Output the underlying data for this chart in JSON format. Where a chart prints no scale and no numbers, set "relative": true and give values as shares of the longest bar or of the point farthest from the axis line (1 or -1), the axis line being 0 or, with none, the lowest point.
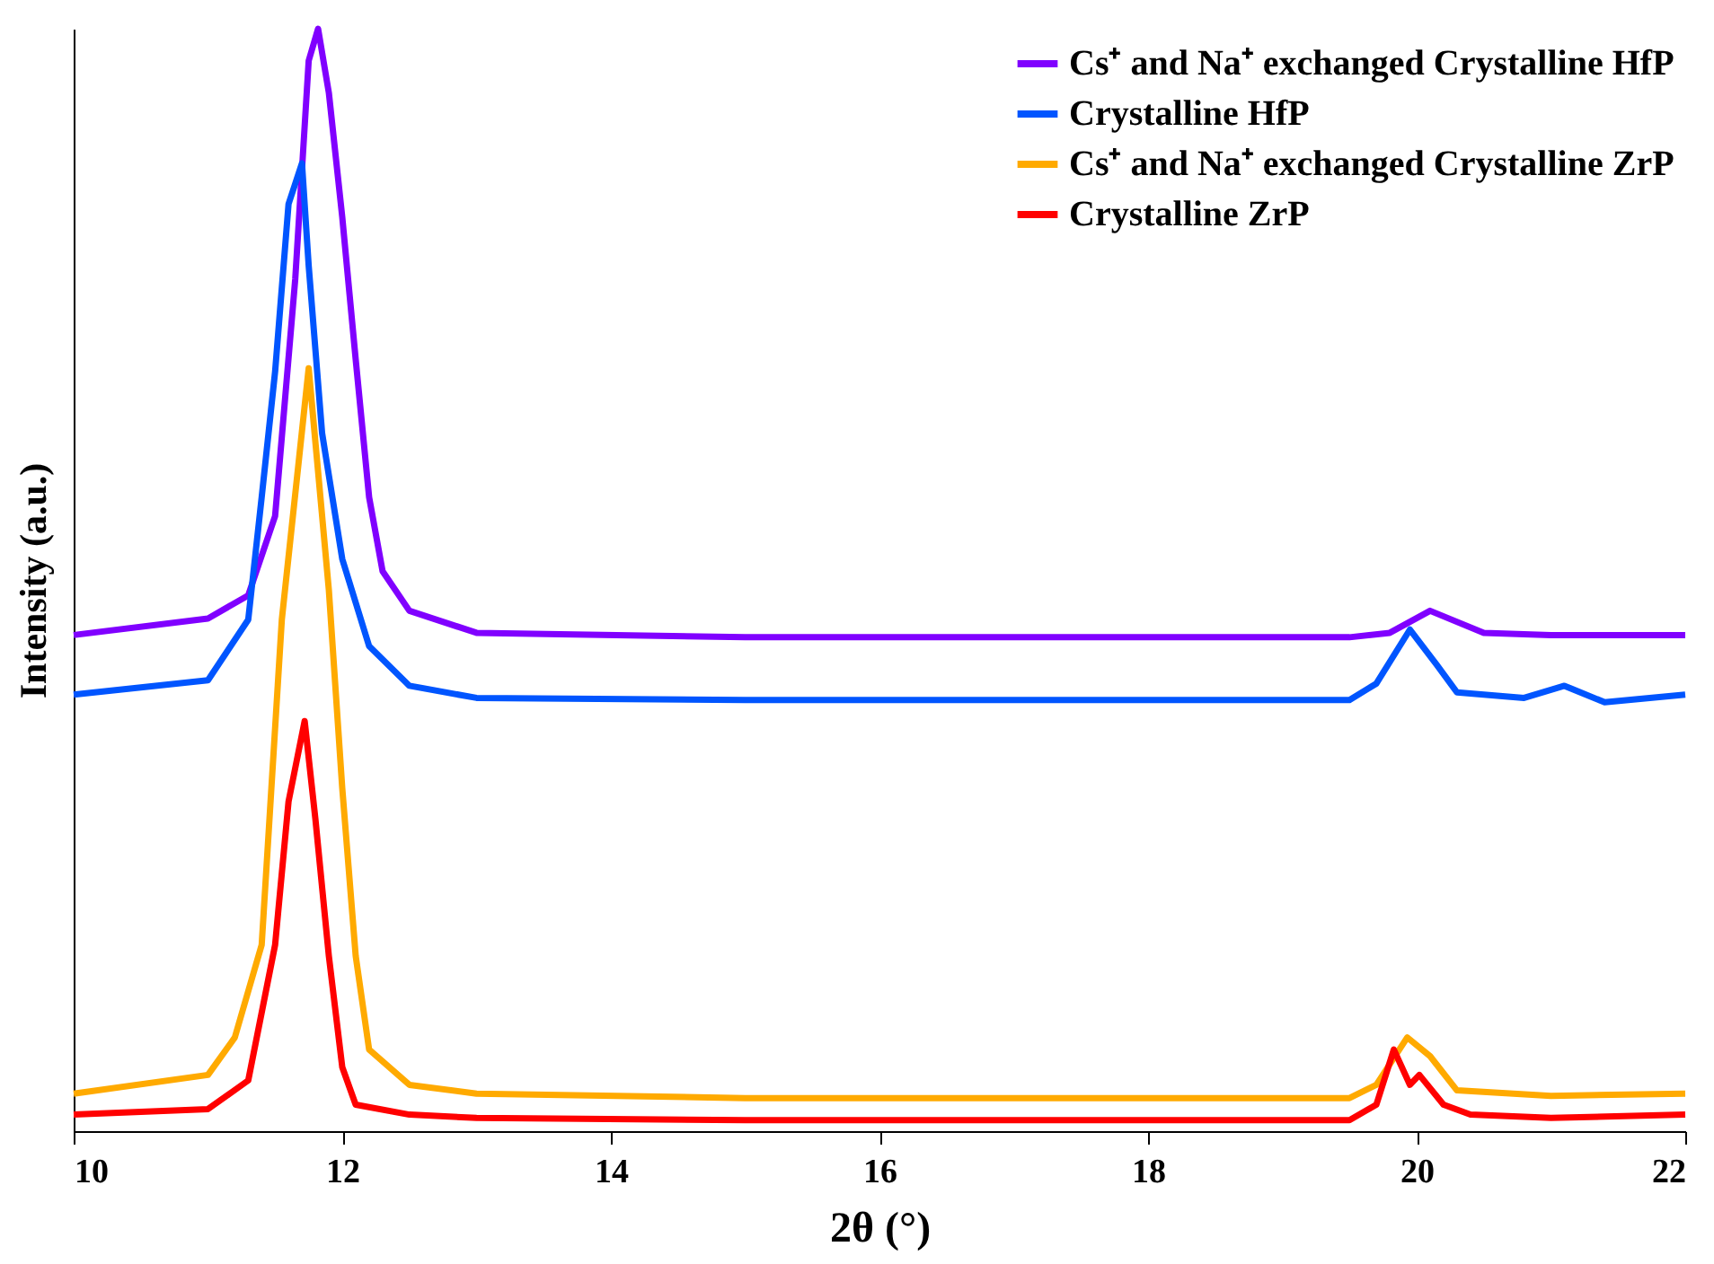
{
  "chart_data": {
    "type": "line",
    "xlabel": "2θ (°)",
    "ylabel": "Intensity (a.u.)",
    "relative": true,
    "xlim": [
      10,
      22
    ],
    "xticks": [
      10,
      12,
      14,
      16,
      18,
      20,
      22
    ],
    "legend": "top right",
    "grid": false,
    "marker": "none",
    "line_style": "solid",
    "series": [
      {
        "name": "Cs⁺ and Na⁺ exchanged Crystalline HfP",
        "color": "#8000ff",
        "x": [
          10,
          11,
          11.3,
          11.5,
          11.65,
          11.75,
          11.82,
          11.9,
          12,
          12.1,
          12.2,
          12.3,
          12.5,
          13,
          15,
          17,
          19.5,
          19.8,
          20.1,
          20.5,
          21,
          22
        ],
        "values": [
          0.45,
          0.465,
          0.486,
          0.558,
          0.773,
          0.971,
          1,
          0.942,
          0.829,
          0.7,
          0.575,
          0.508,
          0.472,
          0.452,
          0.448,
          0.448,
          0.448,
          0.452,
          0.472,
          0.452,
          0.45,
          0.45
        ]
      },
      {
        "name": "Crystalline HfP",
        "color": "#0055ff",
        "x": [
          10,
          11,
          11.3,
          11.4,
          11.5,
          11.6,
          11.7,
          11.75,
          11.85,
          12,
          12.2,
          12.5,
          13,
          15,
          17,
          19.5,
          19.7,
          19.95,
          20.15,
          20.3,
          20.8,
          21.1,
          21.4,
          22
        ],
        "values": [
          0.396,
          0.409,
          0.464,
          0.575,
          0.689,
          0.841,
          0.878,
          0.785,
          0.633,
          0.519,
          0.44,
          0.404,
          0.393,
          0.391,
          0.391,
          0.391,
          0.406,
          0.455,
          0.423,
          0.398,
          0.393,
          0.404,
          0.389,
          0.396
        ]
      },
      {
        "name": "Cs⁺ and Na⁺ exchanged Crystalline ZrP",
        "color": "#ffaa00",
        "x": [
          10,
          11,
          11.2,
          11.4,
          11.55,
          11.75,
          11.9,
          12,
          12.1,
          12.2,
          12.5,
          13,
          15,
          17,
          19.5,
          19.7,
          19.93,
          20.1,
          20.3,
          21,
          22
        ],
        "values": [
          0.034,
          0.051,
          0.085,
          0.169,
          0.464,
          0.692,
          0.491,
          0.311,
          0.159,
          0.074,
          0.042,
          0.034,
          0.03,
          0.03,
          0.03,
          0.042,
          0.085,
          0.068,
          0.037,
          0.032,
          0.034
        ]
      },
      {
        "name": "Crystalline ZrP",
        "color": "#ff0000",
        "x": [
          10,
          11,
          11.3,
          11.5,
          11.6,
          11.72,
          11.8,
          11.9,
          12,
          12.1,
          12.5,
          13,
          15,
          17,
          19.5,
          19.7,
          19.83,
          19.95,
          20.02,
          20.2,
          20.4,
          21,
          22
        ],
        "values": [
          0.015,
          0.02,
          0.046,
          0.169,
          0.299,
          0.372,
          0.283,
          0.159,
          0.058,
          0.024,
          0.015,
          0.012,
          0.01,
          0.01,
          0.01,
          0.024,
          0.074,
          0.042,
          0.051,
          0.024,
          0.015,
          0.012,
          0.015
        ]
      }
    ]
  }
}
